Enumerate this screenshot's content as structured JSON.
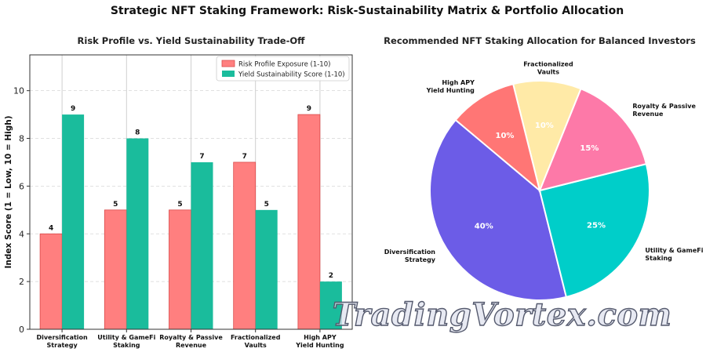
{
  "suptitle": "Strategic NFT Staking Framework: Risk-Sustainability Matrix & Portfolio Allocation",
  "watermark": "TradingVortex.com",
  "colors": {
    "risk": "#ff7f7f",
    "risk_edge": "#d94a4a",
    "sustain": "#1abc9c",
    "pie": [
      "#6c5ce7",
      "#00cec9",
      "#fd79a8",
      "#ffeaa7",
      "#ff7675"
    ]
  },
  "chart_data": [
    {
      "type": "bar",
      "title": "Risk Profile vs. Yield Sustainability Trade-Off",
      "ylabel": "Index Score (1 = Low, 10 = High)",
      "xlabel": "",
      "ylim": [
        0,
        11.5
      ],
      "yticks": [
        0,
        2,
        4,
        6,
        8,
        10
      ],
      "grid": true,
      "legend_position": "top-right",
      "categories": [
        [
          "Diversification",
          "Strategy"
        ],
        [
          "Utility & GameFi",
          "Staking"
        ],
        [
          "Royalty & Passive",
          "Revenue"
        ],
        [
          "Fractionalized",
          "Vaults"
        ],
        [
          "High APY",
          "Yield Hunting"
        ]
      ],
      "series": [
        {
          "name": "Risk Profile Exposure (1-10)",
          "values": [
            4,
            5,
            5,
            7,
            9
          ]
        },
        {
          "name": "Yield Sustainability Score (1-10)",
          "values": [
            9,
            8,
            7,
            5,
            2
          ]
        }
      ]
    },
    {
      "type": "pie",
      "title": "Recommended NFT Staking Allocation for Balanced Investors",
      "slices": [
        {
          "label": [
            "Diversification",
            "Strategy"
          ],
          "value": 40
        },
        {
          "label": [
            "Utility & GameFi",
            "Staking"
          ],
          "value": 25
        },
        {
          "label": [
            "Royalty & Passive",
            "Revenue"
          ],
          "value": 15
        },
        {
          "label": [
            "Fractionalized",
            "Vaults"
          ],
          "value": 10
        },
        {
          "label": [
            "High APY",
            "Yield Hunting"
          ],
          "value": 10
        }
      ]
    }
  ]
}
